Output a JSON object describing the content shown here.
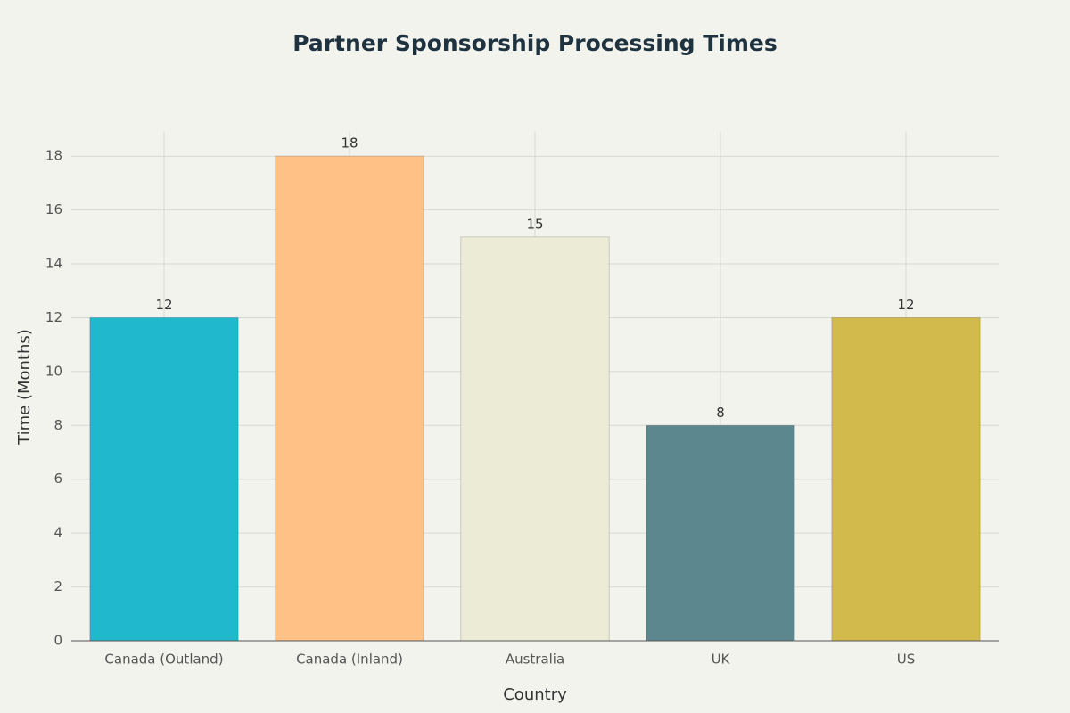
{
  "chart_data": {
    "type": "bar",
    "title": "Partner Sponsorship Processing Times",
    "x_label": "Country",
    "y_label": "Time (Months)",
    "categories": [
      "Canada (Outland)",
      "Canada (Inland)",
      "Australia",
      "UK",
      "US"
    ],
    "values": [
      12,
      18,
      15,
      8,
      12
    ],
    "colors": [
      "#1fb8cd",
      "#ffc185",
      "#eceBd5",
      "#5d878f",
      "#d2ba4c"
    ],
    "ylim": [
      0,
      18.9
    ],
    "yticks": [
      0,
      2,
      4,
      6,
      8,
      10,
      12,
      14,
      16,
      18
    ],
    "grid": true
  }
}
